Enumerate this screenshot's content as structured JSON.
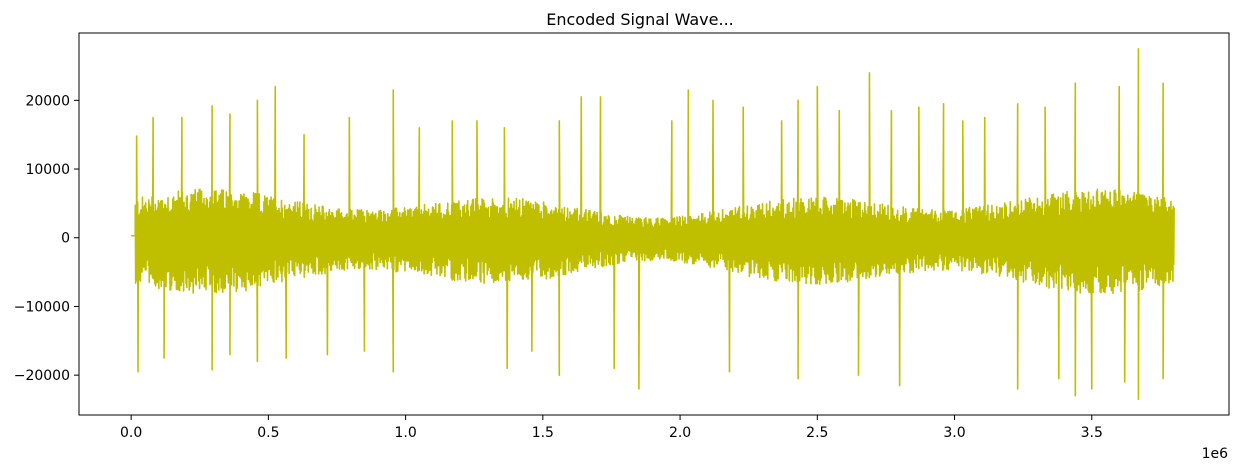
{
  "chart_data": {
    "type": "line",
    "title": "Encoded Signal Wave...",
    "xlabel": "",
    "ylabel": "",
    "x_offset_label": "1e6",
    "xlim": [
      -190000,
      4000000
    ],
    "ylim": [
      -25800,
      29800
    ],
    "x_ticks": [
      0,
      0.5,
      1.0,
      1.5,
      2.0,
      2.5,
      3.0,
      3.5
    ],
    "x_tick_labels": [
      "0.0",
      "0.5",
      "1.0",
      "1.5",
      "2.0",
      "2.5",
      "3.0",
      "3.5"
    ],
    "y_ticks": [
      -20000,
      -10000,
      0,
      10000,
      20000
    ],
    "y_tick_labels": [
      "−20000",
      "−10000",
      "0",
      "10000",
      "20000"
    ],
    "grid": false,
    "legend": "none",
    "series": [
      {
        "color": "#bfbf00",
        "x_start": 0,
        "x_end": 3800000,
        "leading_silence_end": 15000,
        "leading_silence_level": 300,
        "typical_upper": 7000,
        "typical_lower": -8000,
        "peaks": [
          {
            "x": 20000,
            "y": 14800
          },
          {
            "x": 25000,
            "y": -19500
          },
          {
            "x": 80000,
            "y": 17500
          },
          {
            "x": 120000,
            "y": -17500
          },
          {
            "x": 185000,
            "y": 17500
          },
          {
            "x": 295000,
            "y": 19200
          },
          {
            "x": 295000,
            "y": -19200
          },
          {
            "x": 360000,
            "y": 18000
          },
          {
            "x": 360000,
            "y": -17000
          },
          {
            "x": 460000,
            "y": 20000
          },
          {
            "x": 460000,
            "y": -18000
          },
          {
            "x": 525000,
            "y": 22000
          },
          {
            "x": 565000,
            "y": -17500
          },
          {
            "x": 630000,
            "y": 15000
          },
          {
            "x": 715000,
            "y": -17000
          },
          {
            "x": 795000,
            "y": 17500
          },
          {
            "x": 850000,
            "y": -16500
          },
          {
            "x": 955000,
            "y": 21500
          },
          {
            "x": 955000,
            "y": -19500
          },
          {
            "x": 1050000,
            "y": 16000
          },
          {
            "x": 1170000,
            "y": 17000
          },
          {
            "x": 1260000,
            "y": 17000
          },
          {
            "x": 1360000,
            "y": 16000
          },
          {
            "x": 1370000,
            "y": -19000
          },
          {
            "x": 1460000,
            "y": -16500
          },
          {
            "x": 1560000,
            "y": 17000
          },
          {
            "x": 1560000,
            "y": -20000
          },
          {
            "x": 1640000,
            "y": 20500
          },
          {
            "x": 1710000,
            "y": 20500
          },
          {
            "x": 1760000,
            "y": -19000
          },
          {
            "x": 1850000,
            "y": -22000
          },
          {
            "x": 1970000,
            "y": 17000
          },
          {
            "x": 2030000,
            "y": 21500
          },
          {
            "x": 2120000,
            "y": 20000
          },
          {
            "x": 2180000,
            "y": -19500
          },
          {
            "x": 2230000,
            "y": 19000
          },
          {
            "x": 2370000,
            "y": 17000
          },
          {
            "x": 2430000,
            "y": 20000
          },
          {
            "x": 2430000,
            "y": -20500
          },
          {
            "x": 2500000,
            "y": 22000
          },
          {
            "x": 2580000,
            "y": 18500
          },
          {
            "x": 2650000,
            "y": -20000
          },
          {
            "x": 2690000,
            "y": 24000
          },
          {
            "x": 2770000,
            "y": 18500
          },
          {
            "x": 2800000,
            "y": -21500
          },
          {
            "x": 2870000,
            "y": 19000
          },
          {
            "x": 2960000,
            "y": 19500
          },
          {
            "x": 3030000,
            "y": 17000
          },
          {
            "x": 3110000,
            "y": 17500
          },
          {
            "x": 3230000,
            "y": 19500
          },
          {
            "x": 3230000,
            "y": -22000
          },
          {
            "x": 3330000,
            "y": 19000
          },
          {
            "x": 3380000,
            "y": -20500
          },
          {
            "x": 3440000,
            "y": 22500
          },
          {
            "x": 3440000,
            "y": -23000
          },
          {
            "x": 3500000,
            "y": -22000
          },
          {
            "x": 3600000,
            "y": 22000
          },
          {
            "x": 3620000,
            "y": -21000
          },
          {
            "x": 3670000,
            "y": 27500
          },
          {
            "x": 3670000,
            "y": -23500
          },
          {
            "x": 3760000,
            "y": 22500
          },
          {
            "x": 3760000,
            "y": -20500
          }
        ]
      }
    ]
  }
}
